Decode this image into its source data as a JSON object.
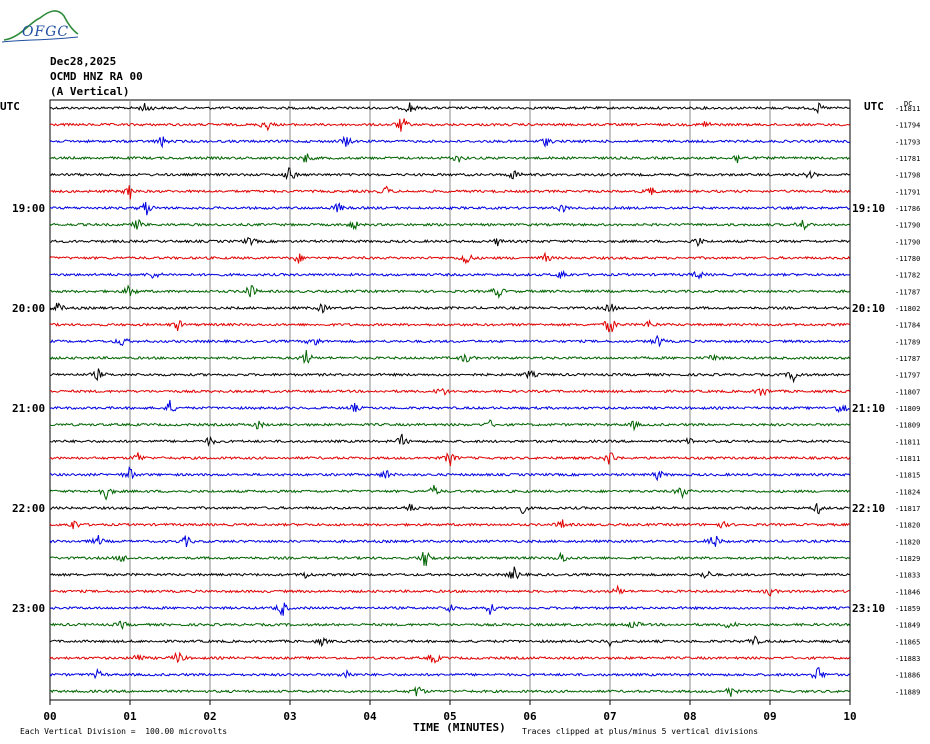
{
  "header": {
    "logo_text": "OFGC",
    "date": "Dec28,2025",
    "station": "OCMD HNZ RA 00",
    "component": "(A Vertical)"
  },
  "footer": {
    "scale_note": "Each Vertical Division =  100.00 microvolts",
    "clip_note": "Traces clipped at plus/minus 5 vertical divisions",
    "xaxis_title": "TIME (MINUTES)"
  },
  "chart_data": {
    "type": "line",
    "title": "",
    "xlabel": "TIME (MINUTES)",
    "xlim": [
      0,
      10
    ],
    "x_ticks": [
      "00",
      "01",
      "02",
      "03",
      "04",
      "05",
      "06",
      "07",
      "08",
      "09",
      "10"
    ],
    "left_axis_title": "UTC",
    "right_axis_title": "UTC",
    "right_header": "DC",
    "left_hour_labels": [
      {
        "row": 6,
        "label": "19:00"
      },
      {
        "row": 12,
        "label": "20:00"
      },
      {
        "row": 18,
        "label": "21:00"
      },
      {
        "row": 24,
        "label": "22:00"
      },
      {
        "row": 30,
        "label": "23:00"
      }
    ],
    "right_hour_labels": [
      {
        "row": 6,
        "label": "19:10"
      },
      {
        "row": 12,
        "label": "20:10"
      },
      {
        "row": 18,
        "label": "21:10"
      },
      {
        "row": 24,
        "label": "22:10"
      },
      {
        "row": 30,
        "label": "23:10"
      }
    ],
    "trace_colors": [
      "#000000",
      "#e00000",
      "#0000e0",
      "#006400"
    ],
    "grid": true,
    "series": [
      {
        "dc": "-11811",
        "events": [
          [
            1.2,
            6
          ],
          [
            4.5,
            7
          ],
          [
            9.6,
            5
          ]
        ]
      },
      {
        "dc": "-11794",
        "events": [
          [
            2.7,
            8
          ],
          [
            4.4,
            10
          ],
          [
            8.2,
            5
          ]
        ]
      },
      {
        "dc": "-11793",
        "events": [
          [
            1.4,
            6
          ],
          [
            3.7,
            6
          ],
          [
            6.2,
            5
          ]
        ]
      },
      {
        "dc": "-11781",
        "events": [
          [
            3.2,
            6
          ],
          [
            5.1,
            5
          ],
          [
            8.6,
            6
          ]
        ]
      },
      {
        "dc": "-11798",
        "events": [
          [
            3.0,
            9
          ],
          [
            5.8,
            6
          ],
          [
            9.5,
            4
          ]
        ]
      },
      {
        "dc": "-11791",
        "events": [
          [
            1.0,
            8
          ],
          [
            4.2,
            5
          ],
          [
            7.5,
            6
          ]
        ]
      },
      {
        "dc": "-11786",
        "events": [
          [
            1.2,
            9
          ],
          [
            3.6,
            6
          ],
          [
            6.4,
            5
          ]
        ]
      },
      {
        "dc": "-11790",
        "events": [
          [
            1.1,
            6
          ],
          [
            3.8,
            5
          ],
          [
            9.4,
            8
          ]
        ]
      },
      {
        "dc": "-11790",
        "events": [
          [
            2.5,
            5
          ],
          [
            5.6,
            4
          ],
          [
            8.1,
            5
          ]
        ]
      },
      {
        "dc": "-11780",
        "events": [
          [
            3.1,
            6
          ],
          [
            5.2,
            9
          ],
          [
            6.2,
            5
          ]
        ]
      },
      {
        "dc": "-11782",
        "events": [
          [
            1.3,
            5
          ],
          [
            6.4,
            6
          ],
          [
            8.1,
            5
          ]
        ]
      },
      {
        "dc": "-11787",
        "events": [
          [
            1.0,
            8
          ],
          [
            2.5,
            10
          ],
          [
            5.6,
            7
          ]
        ]
      },
      {
        "dc": "-11802",
        "events": [
          [
            0.1,
            6
          ],
          [
            3.4,
            5
          ],
          [
            7.0,
            6
          ]
        ]
      },
      {
        "dc": "-11784",
        "events": [
          [
            1.6,
            6
          ],
          [
            7.0,
            12
          ],
          [
            7.5,
            5
          ]
        ]
      },
      {
        "dc": "-11789",
        "events": [
          [
            0.9,
            6
          ],
          [
            3.3,
            8
          ],
          [
            7.6,
            7
          ]
        ]
      },
      {
        "dc": "-11787",
        "events": [
          [
            3.2,
            9
          ],
          [
            5.2,
            6
          ],
          [
            8.3,
            5
          ]
        ]
      },
      {
        "dc": "-11797",
        "events": [
          [
            0.6,
            6
          ],
          [
            6.0,
            5
          ],
          [
            9.3,
            8
          ]
        ]
      },
      {
        "dc": "-11807",
        "events": [
          [
            4.9,
            6
          ],
          [
            8.9,
            7
          ]
        ]
      },
      {
        "dc": "-11809",
        "events": [
          [
            1.5,
            8
          ],
          [
            3.8,
            5
          ],
          [
            9.9,
            10
          ]
        ]
      },
      {
        "dc": "-11809",
        "events": [
          [
            2.6,
            5
          ],
          [
            5.5,
            4
          ],
          [
            7.3,
            4
          ]
        ]
      },
      {
        "dc": "-11811",
        "events": [
          [
            2.0,
            5
          ],
          [
            4.4,
            7
          ],
          [
            8.0,
            4
          ]
        ]
      },
      {
        "dc": "-11811",
        "events": [
          [
            1.1,
            6
          ],
          [
            5.0,
            9
          ],
          [
            7.0,
            10
          ]
        ]
      },
      {
        "dc": "-11815",
        "events": [
          [
            1.0,
            8
          ],
          [
            4.2,
            6
          ],
          [
            7.6,
            6
          ]
        ]
      },
      {
        "dc": "-11824",
        "events": [
          [
            0.7,
            10
          ],
          [
            4.8,
            6
          ],
          [
            7.9,
            8
          ]
        ]
      },
      {
        "dc": "-11817",
        "events": [
          [
            4.5,
            5
          ],
          [
            5.9,
            6
          ],
          [
            9.6,
            6
          ]
        ]
      },
      {
        "dc": "-11820",
        "events": [
          [
            0.3,
            6
          ],
          [
            6.4,
            5
          ],
          [
            8.4,
            4
          ]
        ]
      },
      {
        "dc": "-11820",
        "events": [
          [
            0.6,
            6
          ],
          [
            1.7,
            6
          ],
          [
            8.3,
            10
          ]
        ]
      },
      {
        "dc": "-11829",
        "events": [
          [
            0.9,
            5
          ],
          [
            4.7,
            14
          ],
          [
            6.4,
            7
          ]
        ]
      },
      {
        "dc": "-11833",
        "events": [
          [
            3.2,
            4
          ],
          [
            5.8,
            8
          ],
          [
            8.2,
            6
          ]
        ]
      },
      {
        "dc": "-11846",
        "events": [
          [
            7.1,
            5
          ],
          [
            9.0,
            5
          ]
        ]
      },
      {
        "dc": "-11859",
        "events": [
          [
            2.9,
            10
          ],
          [
            5.0,
            6
          ],
          [
            5.5,
            6
          ]
        ]
      },
      {
        "dc": "-11849",
        "events": [
          [
            0.9,
            4
          ],
          [
            7.3,
            6
          ],
          [
            8.5,
            6
          ]
        ]
      },
      {
        "dc": "-11865",
        "events": [
          [
            3.4,
            4
          ],
          [
            7.0,
            4
          ],
          [
            8.8,
            6
          ]
        ]
      },
      {
        "dc": "-11883",
        "events": [
          [
            1.1,
            6
          ],
          [
            1.6,
            8
          ],
          [
            4.8,
            7
          ]
        ]
      },
      {
        "dc": "-11886",
        "events": [
          [
            0.6,
            5
          ],
          [
            3.7,
            6
          ],
          [
            9.6,
            10
          ]
        ]
      },
      {
        "dc": "-11889",
        "events": [
          [
            4.6,
            8
          ],
          [
            8.5,
            7
          ]
        ]
      }
    ]
  }
}
